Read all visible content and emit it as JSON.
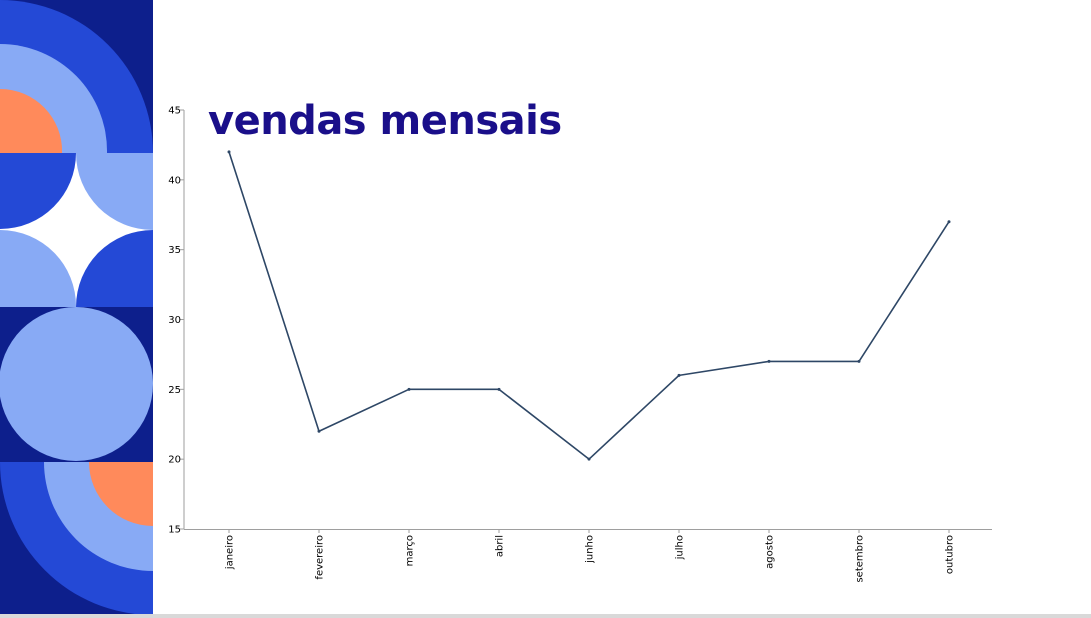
{
  "palette": {
    "navy": "#0d1f8c",
    "royal": "#2449d6",
    "light_blue": "#88aaf5",
    "coral": "#ff8a5b",
    "line": "#2e4766",
    "title": "#1a0f8a"
  },
  "chart_data": {
    "type": "line",
    "title": "vendas mensais",
    "xlabel": "",
    "ylabel": "",
    "categories": [
      "janeiro",
      "fevereiro",
      "março",
      "abril",
      "junho",
      "julho",
      "agosto",
      "setembro",
      "outubro"
    ],
    "series": [
      {
        "values": [
          42,
          22,
          25,
          25,
          20,
          26,
          27,
          27,
          37
        ]
      }
    ],
    "ylim": [
      15,
      45
    ],
    "yticks": [
      15,
      20,
      25,
      30,
      35,
      40,
      45
    ],
    "grid": false,
    "legend": "none"
  }
}
